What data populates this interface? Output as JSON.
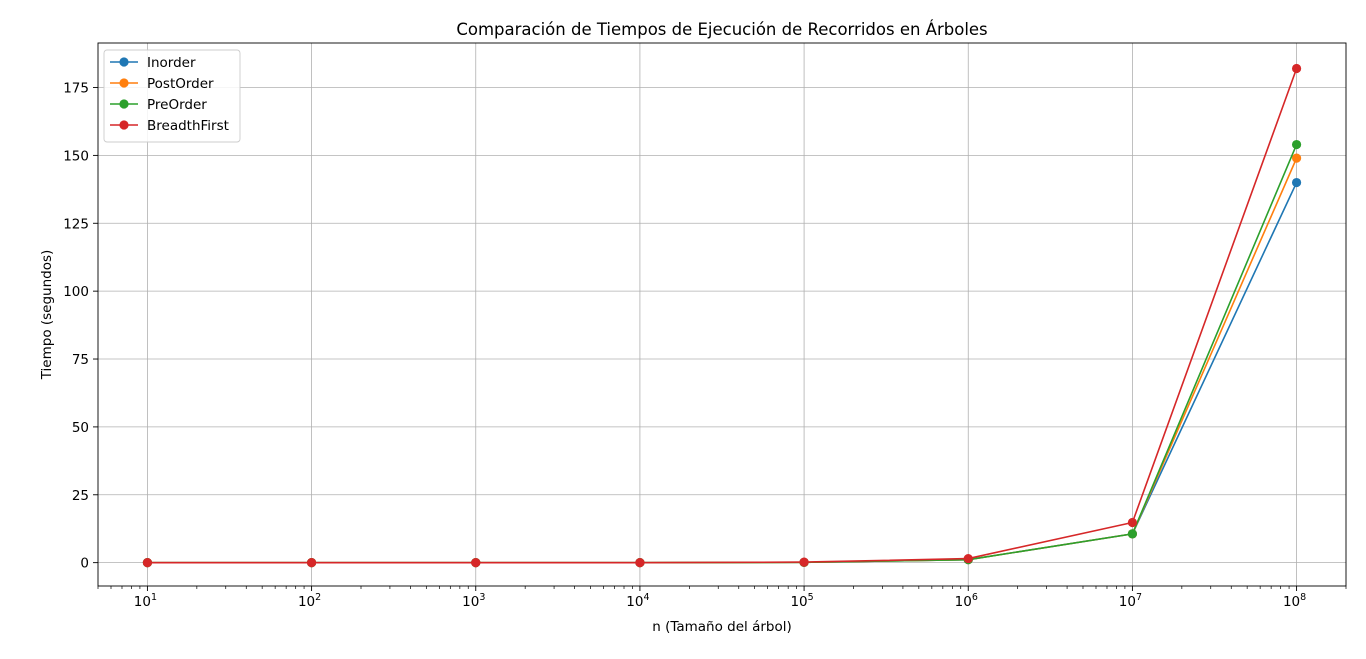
{
  "chart_data": {
    "type": "line",
    "title": "Comparación de Tiempos de Ejecución de Recorridos en Árboles",
    "xlabel": "n (Tamaño del árbol)",
    "ylabel": "Tiempo (segundos)",
    "xscale": "log",
    "x": [
      10,
      100,
      1000,
      10000,
      100000,
      1000000,
      10000000,
      100000000
    ],
    "x_tick_labels": [
      {
        "base": "10",
        "exp": "1"
      },
      {
        "base": "10",
        "exp": "2"
      },
      {
        "base": "10",
        "exp": "3"
      },
      {
        "base": "10",
        "exp": "4"
      },
      {
        "base": "10",
        "exp": "5"
      },
      {
        "base": "10",
        "exp": "6"
      },
      {
        "base": "10",
        "exp": "7"
      },
      {
        "base": "10",
        "exp": "8"
      }
    ],
    "y_ticks": [
      0,
      25,
      50,
      75,
      100,
      125,
      150,
      175
    ],
    "y_tick_labels": [
      "0",
      "25",
      "50",
      "75",
      "100",
      "125",
      "150",
      "175"
    ],
    "ylim": [
      -8.6,
      191.4
    ],
    "xlim": [
      5.0,
      200000000
    ],
    "grid": true,
    "legend_position": "upper left",
    "series": [
      {
        "name": "Inorder",
        "color": "#1f77b4",
        "values": [
          0.0,
          0.0,
          0.0,
          0.0,
          0.1,
          1.1,
          10.6,
          140.0
        ]
      },
      {
        "name": "PostOrder",
        "color": "#ff7f0e",
        "values": [
          0.0,
          0.0,
          0.0,
          0.0,
          0.1,
          1.1,
          10.6,
          149.0
        ]
      },
      {
        "name": "PreOrder",
        "color": "#2ca02c",
        "values": [
          0.0,
          0.0,
          0.0,
          0.0,
          0.1,
          1.1,
          10.6,
          154.0
        ]
      },
      {
        "name": "BreadthFirst",
        "color": "#d62728",
        "values": [
          0.0,
          0.0,
          0.0,
          0.0,
          0.2,
          1.5,
          14.8,
          182.0
        ]
      }
    ]
  }
}
